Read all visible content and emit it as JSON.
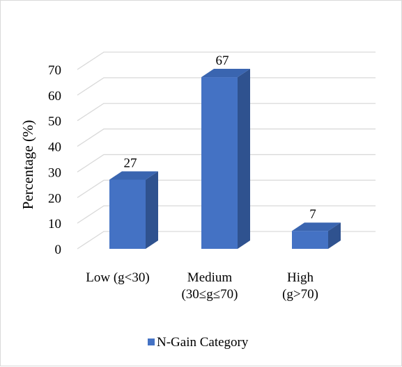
{
  "chart_data": {
    "type": "bar",
    "style": "3d-column",
    "categories": [
      [
        "Low (g<30)"
      ],
      [
        "Medium",
        "(30≤g≤70)"
      ],
      [
        "High",
        "(g>70)"
      ]
    ],
    "series": [
      {
        "name": "N-Gain Category",
        "values": [
          27,
          67,
          7
        ]
      }
    ],
    "data_labels": [
      "27",
      "67",
      "7"
    ],
    "title": "",
    "xlabel": "",
    "ylabel": "Percentage (%)",
    "ylim": [
      0,
      70
    ],
    "yticks": [
      "0",
      "10",
      "20",
      "30",
      "40",
      "50",
      "60",
      "70"
    ],
    "grid": true,
    "legend": "bottom",
    "colors": {
      "bar_front": "#4472c4",
      "bar_side": "#2f528f",
      "bar_top": "#3a65b0",
      "grid": "#d9d9d9"
    }
  }
}
